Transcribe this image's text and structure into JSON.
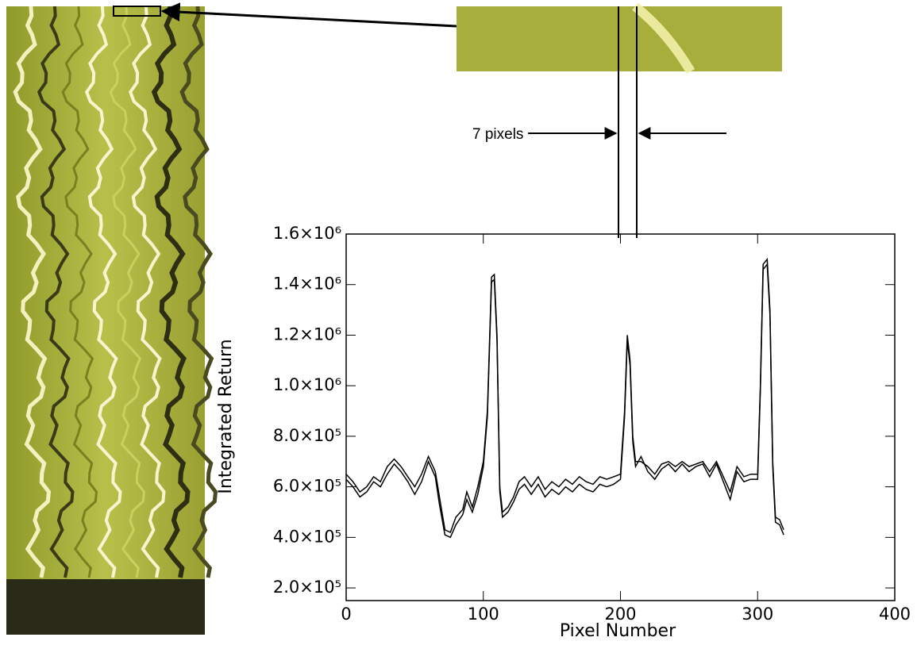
{
  "chart_data": {
    "type": "line",
    "y_label": "Integrated Return",
    "x_label": "Pixel Number",
    "annotation": "7 pixels",
    "xlim": [
      0,
      400
    ],
    "xticks": [
      0,
      100,
      200,
      300,
      400
    ],
    "ylim": [
      150000,
      1600000
    ],
    "yticks": [
      {
        "value": 200000,
        "label": "2.0×10⁵"
      },
      {
        "value": 400000,
        "label": "4.0×10⁵"
      },
      {
        "value": 600000,
        "label": "6.0×10⁵"
      },
      {
        "value": 800000,
        "label": "8.0×10⁵"
      },
      {
        "value": 1000000,
        "label": "1.0×10⁶"
      },
      {
        "value": 1200000,
        "label": "1.2×10⁶"
      },
      {
        "value": 1400000,
        "label": "1.4×10⁶"
      },
      {
        "value": 1600000,
        "label": "1.6×10⁶"
      }
    ],
    "x": [
      0,
      5,
      10,
      15,
      20,
      25,
      30,
      35,
      40,
      45,
      50,
      55,
      60,
      65,
      68,
      72,
      76,
      80,
      85,
      88,
      92,
      96,
      100,
      103,
      106,
      108,
      110,
      112,
      114,
      118,
      122,
      126,
      130,
      135,
      140,
      145,
      150,
      155,
      160,
      165,
      170,
      175,
      180,
      185,
      190,
      195,
      200,
      203,
      205,
      207,
      209,
      211,
      215,
      220,
      225,
      230,
      235,
      240,
      245,
      250,
      255,
      260,
      265,
      270,
      275,
      280,
      285,
      290,
      295,
      300,
      302,
      304,
      307,
      309,
      311,
      313,
      316,
      319
    ],
    "series": [
      {
        "color": "#000000",
        "values": [
          650000,
          620000,
          580000,
          600000,
          640000,
          620000,
          680000,
          710000,
          680000,
          640000,
          600000,
          650000,
          720000,
          660000,
          560000,
          430000,
          420000,
          480000,
          510000,
          580000,
          520000,
          600000,
          700000,
          900000,
          1430000,
          1440000,
          1200000,
          600000,
          500000,
          520000,
          560000,
          620000,
          640000,
          600000,
          640000,
          590000,
          620000,
          600000,
          630000,
          610000,
          640000,
          620000,
          610000,
          640000,
          630000,
          640000,
          650000,
          900000,
          1200000,
          1100000,
          800000,
          700000,
          700000,
          680000,
          650000,
          690000,
          700000,
          680000,
          700000,
          680000,
          690000,
          700000,
          660000,
          700000,
          640000,
          580000,
          680000,
          640000,
          650000,
          650000,
          1000000,
          1480000,
          1500000,
          1300000,
          700000,
          480000,
          470000,
          430000
        ]
      },
      {
        "color": "#000000",
        "values": [
          630000,
          600000,
          560000,
          580000,
          620000,
          600000,
          650000,
          690000,
          660000,
          620000,
          570000,
          620000,
          700000,
          640000,
          530000,
          410000,
          400000,
          450000,
          490000,
          550000,
          500000,
          570000,
          680000,
          880000,
          1410000,
          1420000,
          1180000,
          580000,
          480000,
          500000,
          540000,
          590000,
          610000,
          570000,
          610000,
          560000,
          590000,
          570000,
          600000,
          580000,
          610000,
          590000,
          580000,
          610000,
          600000,
          610000,
          630000,
          880000,
          1180000,
          1080000,
          780000,
          680000,
          720000,
          660000,
          630000,
          670000,
          690000,
          660000,
          690000,
          660000,
          680000,
          690000,
          640000,
          690000,
          620000,
          550000,
          660000,
          620000,
          630000,
          630000,
          980000,
          1460000,
          1480000,
          1280000,
          680000,
          460000,
          450000,
          410000
        ]
      }
    ]
  }
}
